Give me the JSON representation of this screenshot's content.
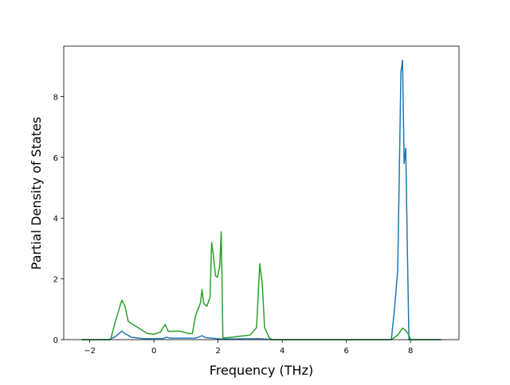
{
  "chart_data": {
    "type": "line",
    "xlabel": "Frequency (THz)",
    "ylabel": "Partial Density of States",
    "xlim": [
      -2.81,
      9.51
    ],
    "ylim": [
      0,
      9.66
    ],
    "xticks": [
      {
        "value": -2,
        "label": "−2"
      },
      0,
      2,
      4,
      6,
      8
    ],
    "yticks": [
      0,
      2,
      4,
      6,
      8
    ],
    "series": [
      {
        "color": "#1f77b4",
        "x": [
          -2.25,
          -1.4,
          -1.2,
          -1.0,
          -0.9,
          -0.7,
          -0.3,
          0.3,
          0.4,
          0.5,
          1.3,
          1.5,
          1.6,
          2.1,
          3.3,
          3.7,
          7.4,
          7.5,
          7.6,
          7.7,
          7.75,
          7.8,
          7.85,
          7.9,
          7.95,
          8.95
        ],
        "values": [
          0,
          0,
          0.1,
          0.28,
          0.2,
          0.08,
          0.03,
          0.04,
          0.08,
          0.05,
          0.05,
          0.13,
          0.07,
          0.02,
          0.03,
          0,
          0,
          1.0,
          2.3,
          8.8,
          9.2,
          5.8,
          6.3,
          3.0,
          0,
          0
        ]
      },
      {
        "color": "#2ca02c",
        "x": [
          -2.25,
          -1.35,
          -1.2,
          -1.0,
          -0.9,
          -0.8,
          -0.5,
          -0.2,
          0,
          0.2,
          0.35,
          0.45,
          0.8,
          1.1,
          1.2,
          1.3,
          1.45,
          1.5,
          1.55,
          1.65,
          1.75,
          1.8,
          1.85,
          1.92,
          1.98,
          2.05,
          2.1,
          2.15,
          3.0,
          3.2,
          3.3,
          3.38,
          3.45,
          3.6,
          3.7,
          7.4,
          7.6,
          7.75,
          7.85,
          7.95,
          8.0,
          8.95
        ],
        "values": [
          0,
          0,
          0.6,
          1.3,
          1.1,
          0.6,
          0.4,
          0.2,
          0.18,
          0.25,
          0.5,
          0.27,
          0.28,
          0.2,
          0.2,
          0.8,
          1.2,
          1.65,
          1.2,
          1.1,
          1.4,
          3.2,
          2.8,
          2.1,
          2.05,
          2.4,
          3.55,
          0.05,
          0.15,
          0.4,
          2.5,
          1.8,
          0.4,
          0.05,
          0,
          0,
          0.15,
          0.38,
          0.3,
          0.15,
          0,
          0
        ]
      }
    ]
  }
}
